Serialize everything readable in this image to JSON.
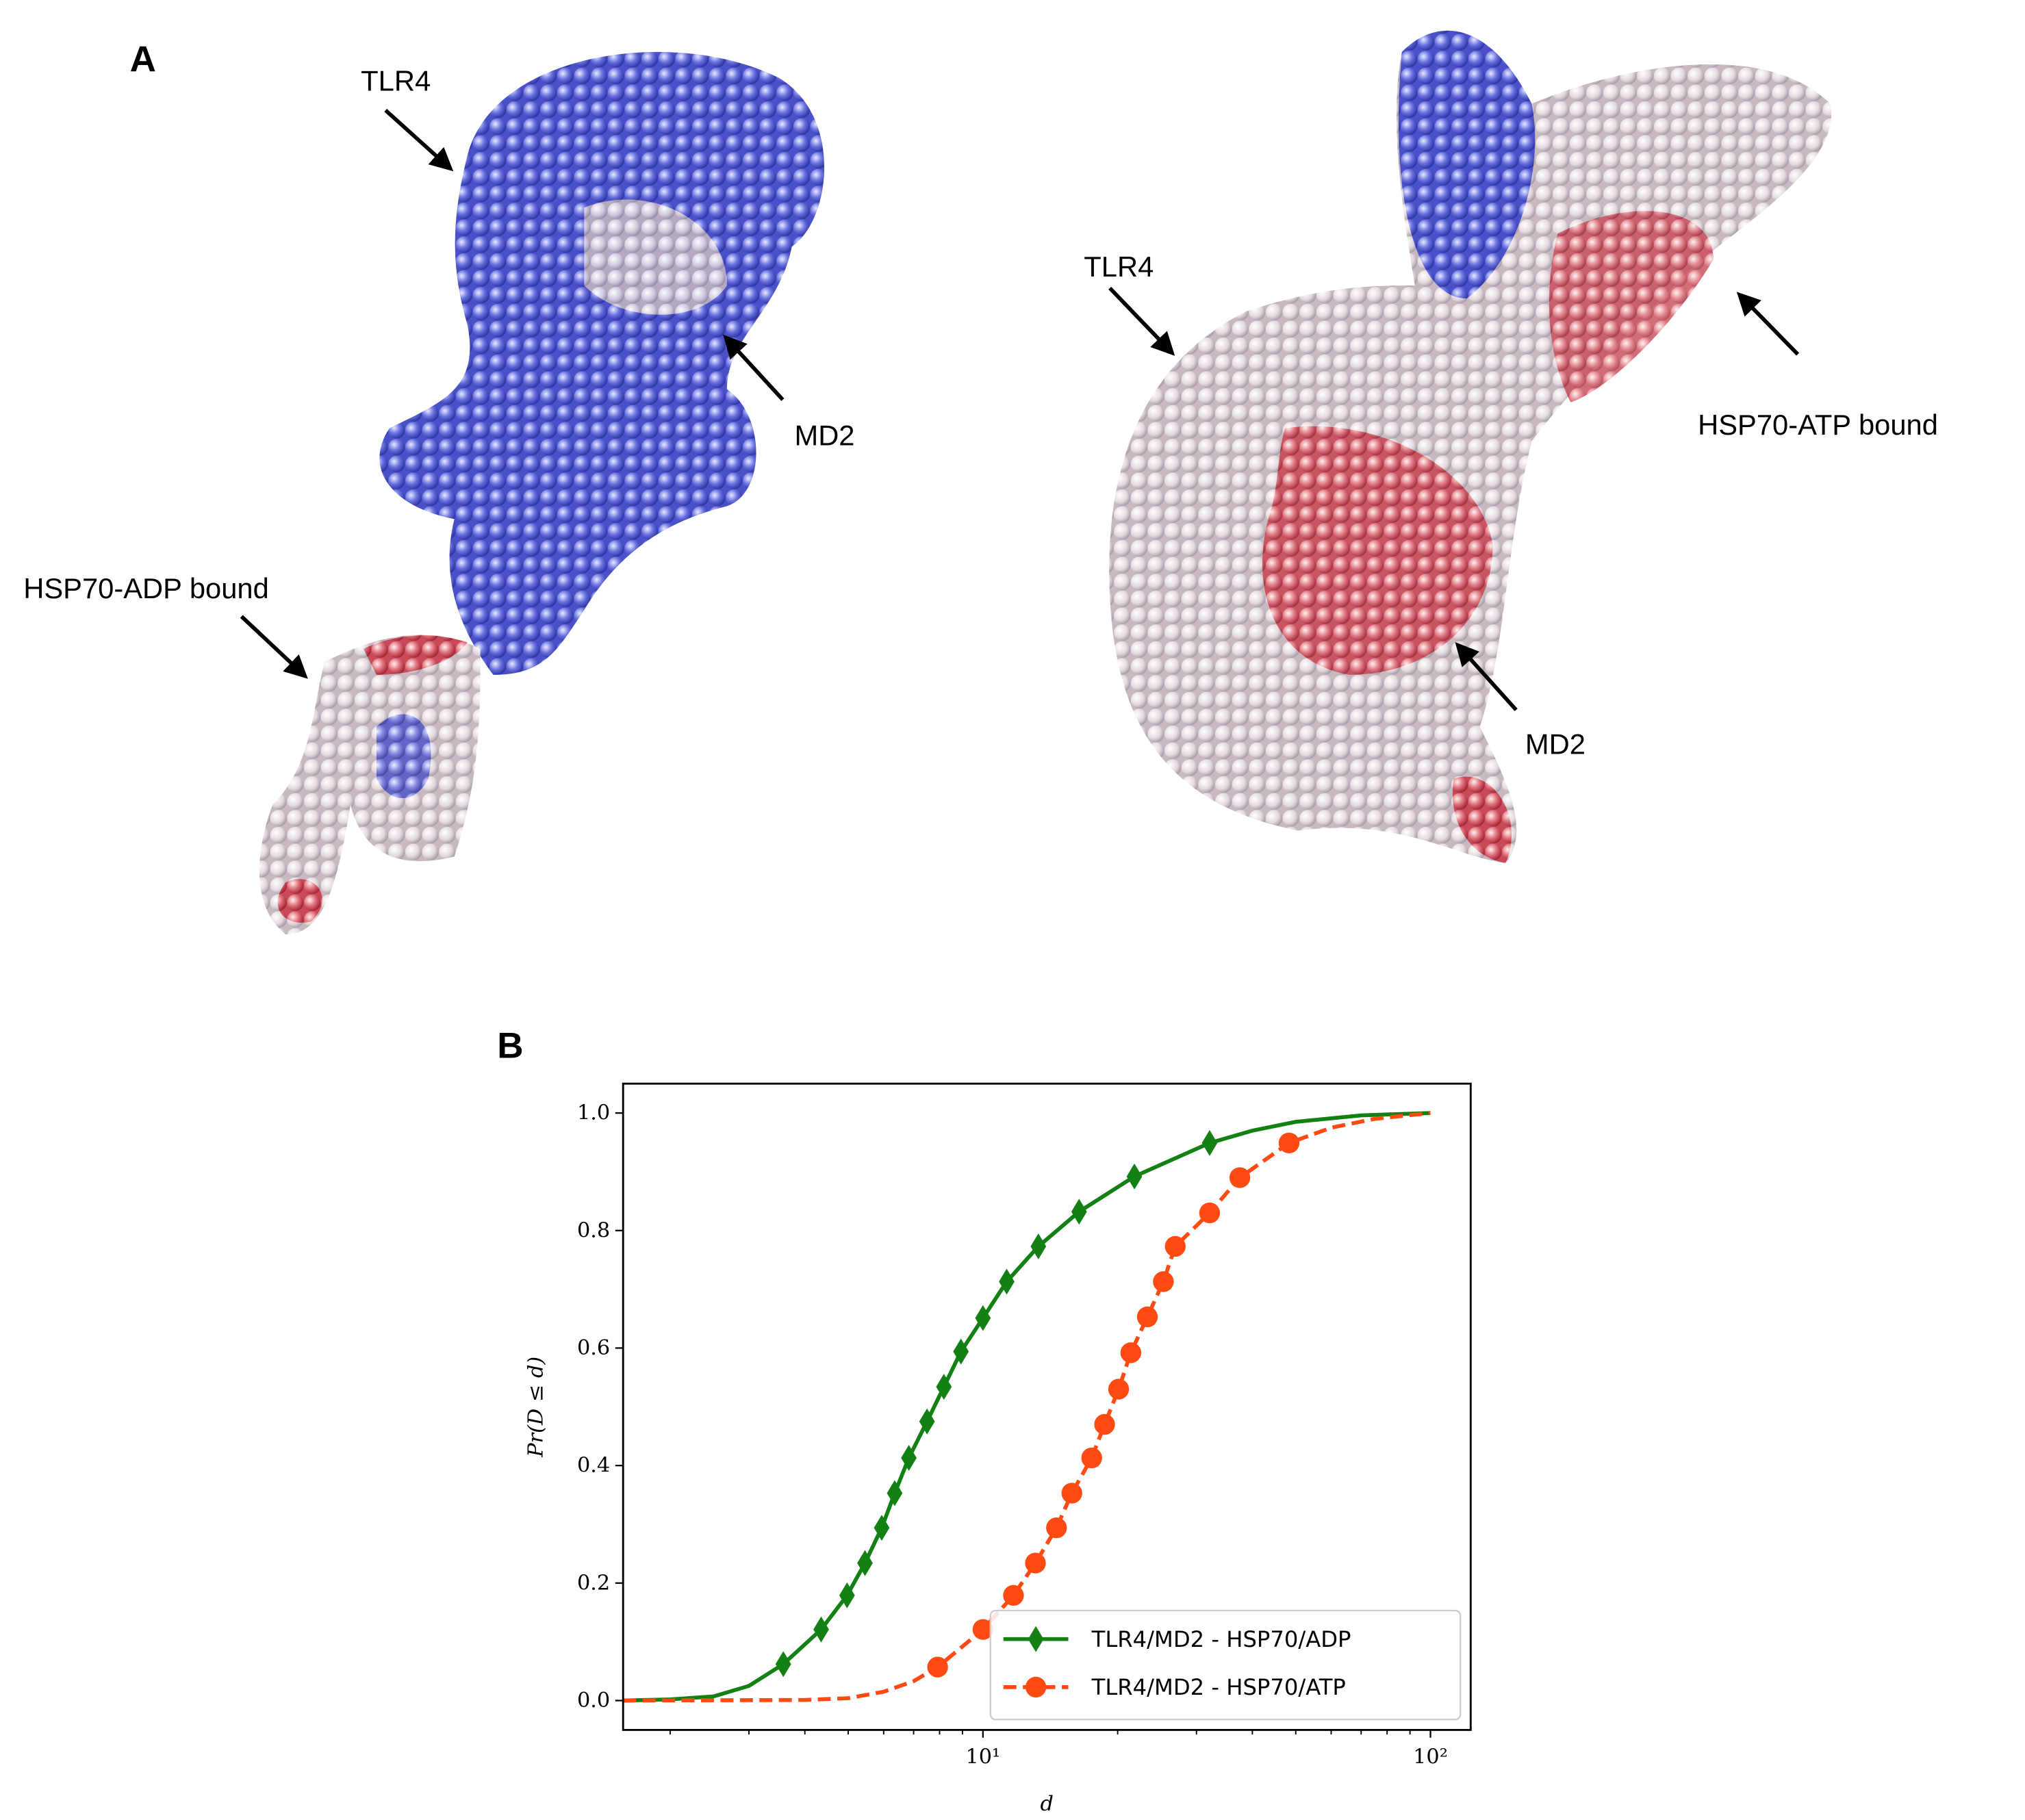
{
  "panel_labels": [
    "A",
    "B"
  ],
  "panel_a": {
    "annotations": [
      "TLR4",
      "MD2",
      "HSP70-ADP bound",
      "TLR4",
      "HSP70-ATP bound",
      "MD2"
    ]
  },
  "chart_data": {
    "type": "line",
    "xlabel": "d",
    "ylabel": "Pr(D ≤ d)",
    "xscale": "log",
    "xlim": [
      1.57,
      123
    ],
    "ylim": [
      -0.05,
      1.05
    ],
    "xticks": [
      {
        "value": 10,
        "label": "10¹"
      },
      {
        "value": 100,
        "label": "10²"
      }
    ],
    "xminorticks": [
      2,
      3,
      4,
      5,
      6,
      7,
      8,
      9,
      20,
      30,
      40,
      50,
      60,
      70,
      80,
      90
    ],
    "yticks": [
      {
        "value": 0,
        "label": "0.0"
      },
      0.2,
      0.4,
      0.6,
      0.8,
      {
        "value": 1,
        "label": "1.0"
      }
    ],
    "legend": "lower right",
    "series": [
      {
        "name": "TLR4/MD2 - HSP70/ADP",
        "color": "#138013",
        "linestyle": "solid",
        "marker": "diamond",
        "x": [
          1.57,
          2,
          2.5,
          3,
          3.58,
          4.35,
          4.97,
          5.45,
          5.94,
          6.35,
          6.83,
          7.5,
          8.18,
          8.93,
          10,
          11.3,
          13.3,
          16.4,
          21.8,
          32.1,
          40,
          50,
          70,
          100
        ],
        "values": [
          0,
          0.002,
          0.007,
          0.025,
          0.062,
          0.121,
          0.179,
          0.234,
          0.294,
          0.353,
          0.413,
          0.475,
          0.534,
          0.594,
          0.651,
          0.713,
          0.773,
          0.832,
          0.892,
          0.949,
          0.97,
          0.985,
          0.996,
          1
        ],
        "markers": {
          "x": [
            3.58,
            4.35,
            4.97,
            5.45,
            5.94,
            6.35,
            6.83,
            7.5,
            8.18,
            8.93,
            10,
            11.3,
            13.3,
            16.4,
            21.8,
            32.1
          ],
          "values": [
            0.062,
            0.121,
            0.179,
            0.234,
            0.294,
            0.353,
            0.413,
            0.475,
            0.534,
            0.594,
            0.651,
            0.713,
            0.773,
            0.832,
            0.892,
            0.949
          ]
        }
      },
      {
        "name": "TLR4/MD2 - HSP70/ATP",
        "color": "#ff4a12",
        "linestyle": "dashed",
        "marker": "circle",
        "x": [
          1.57,
          4,
          5,
          6,
          7,
          7.92,
          10,
          11.7,
          13.1,
          14.6,
          15.8,
          17.5,
          18.7,
          20.1,
          21.4,
          23.3,
          25.3,
          26.9,
          32.1,
          37.5,
          48.3,
          60,
          75,
          100
        ],
        "values": [
          0,
          0.001,
          0.004,
          0.015,
          0.033,
          0.057,
          0.121,
          0.179,
          0.234,
          0.294,
          0.353,
          0.413,
          0.47,
          0.53,
          0.592,
          0.653,
          0.713,
          0.773,
          0.83,
          0.89,
          0.949,
          0.975,
          0.99,
          1
        ],
        "markers": {
          "x": [
            7.92,
            10,
            11.7,
            13.1,
            14.6,
            15.8,
            17.5,
            18.7,
            20.1,
            21.4,
            23.3,
            25.3,
            26.9,
            32.1,
            37.5,
            48.3
          ],
          "values": [
            0.057,
            0.121,
            0.179,
            0.234,
            0.294,
            0.353,
            0.413,
            0.47,
            0.53,
            0.592,
            0.653,
            0.713,
            0.773,
            0.83,
            0.89,
            0.949
          ]
        }
      }
    ]
  }
}
